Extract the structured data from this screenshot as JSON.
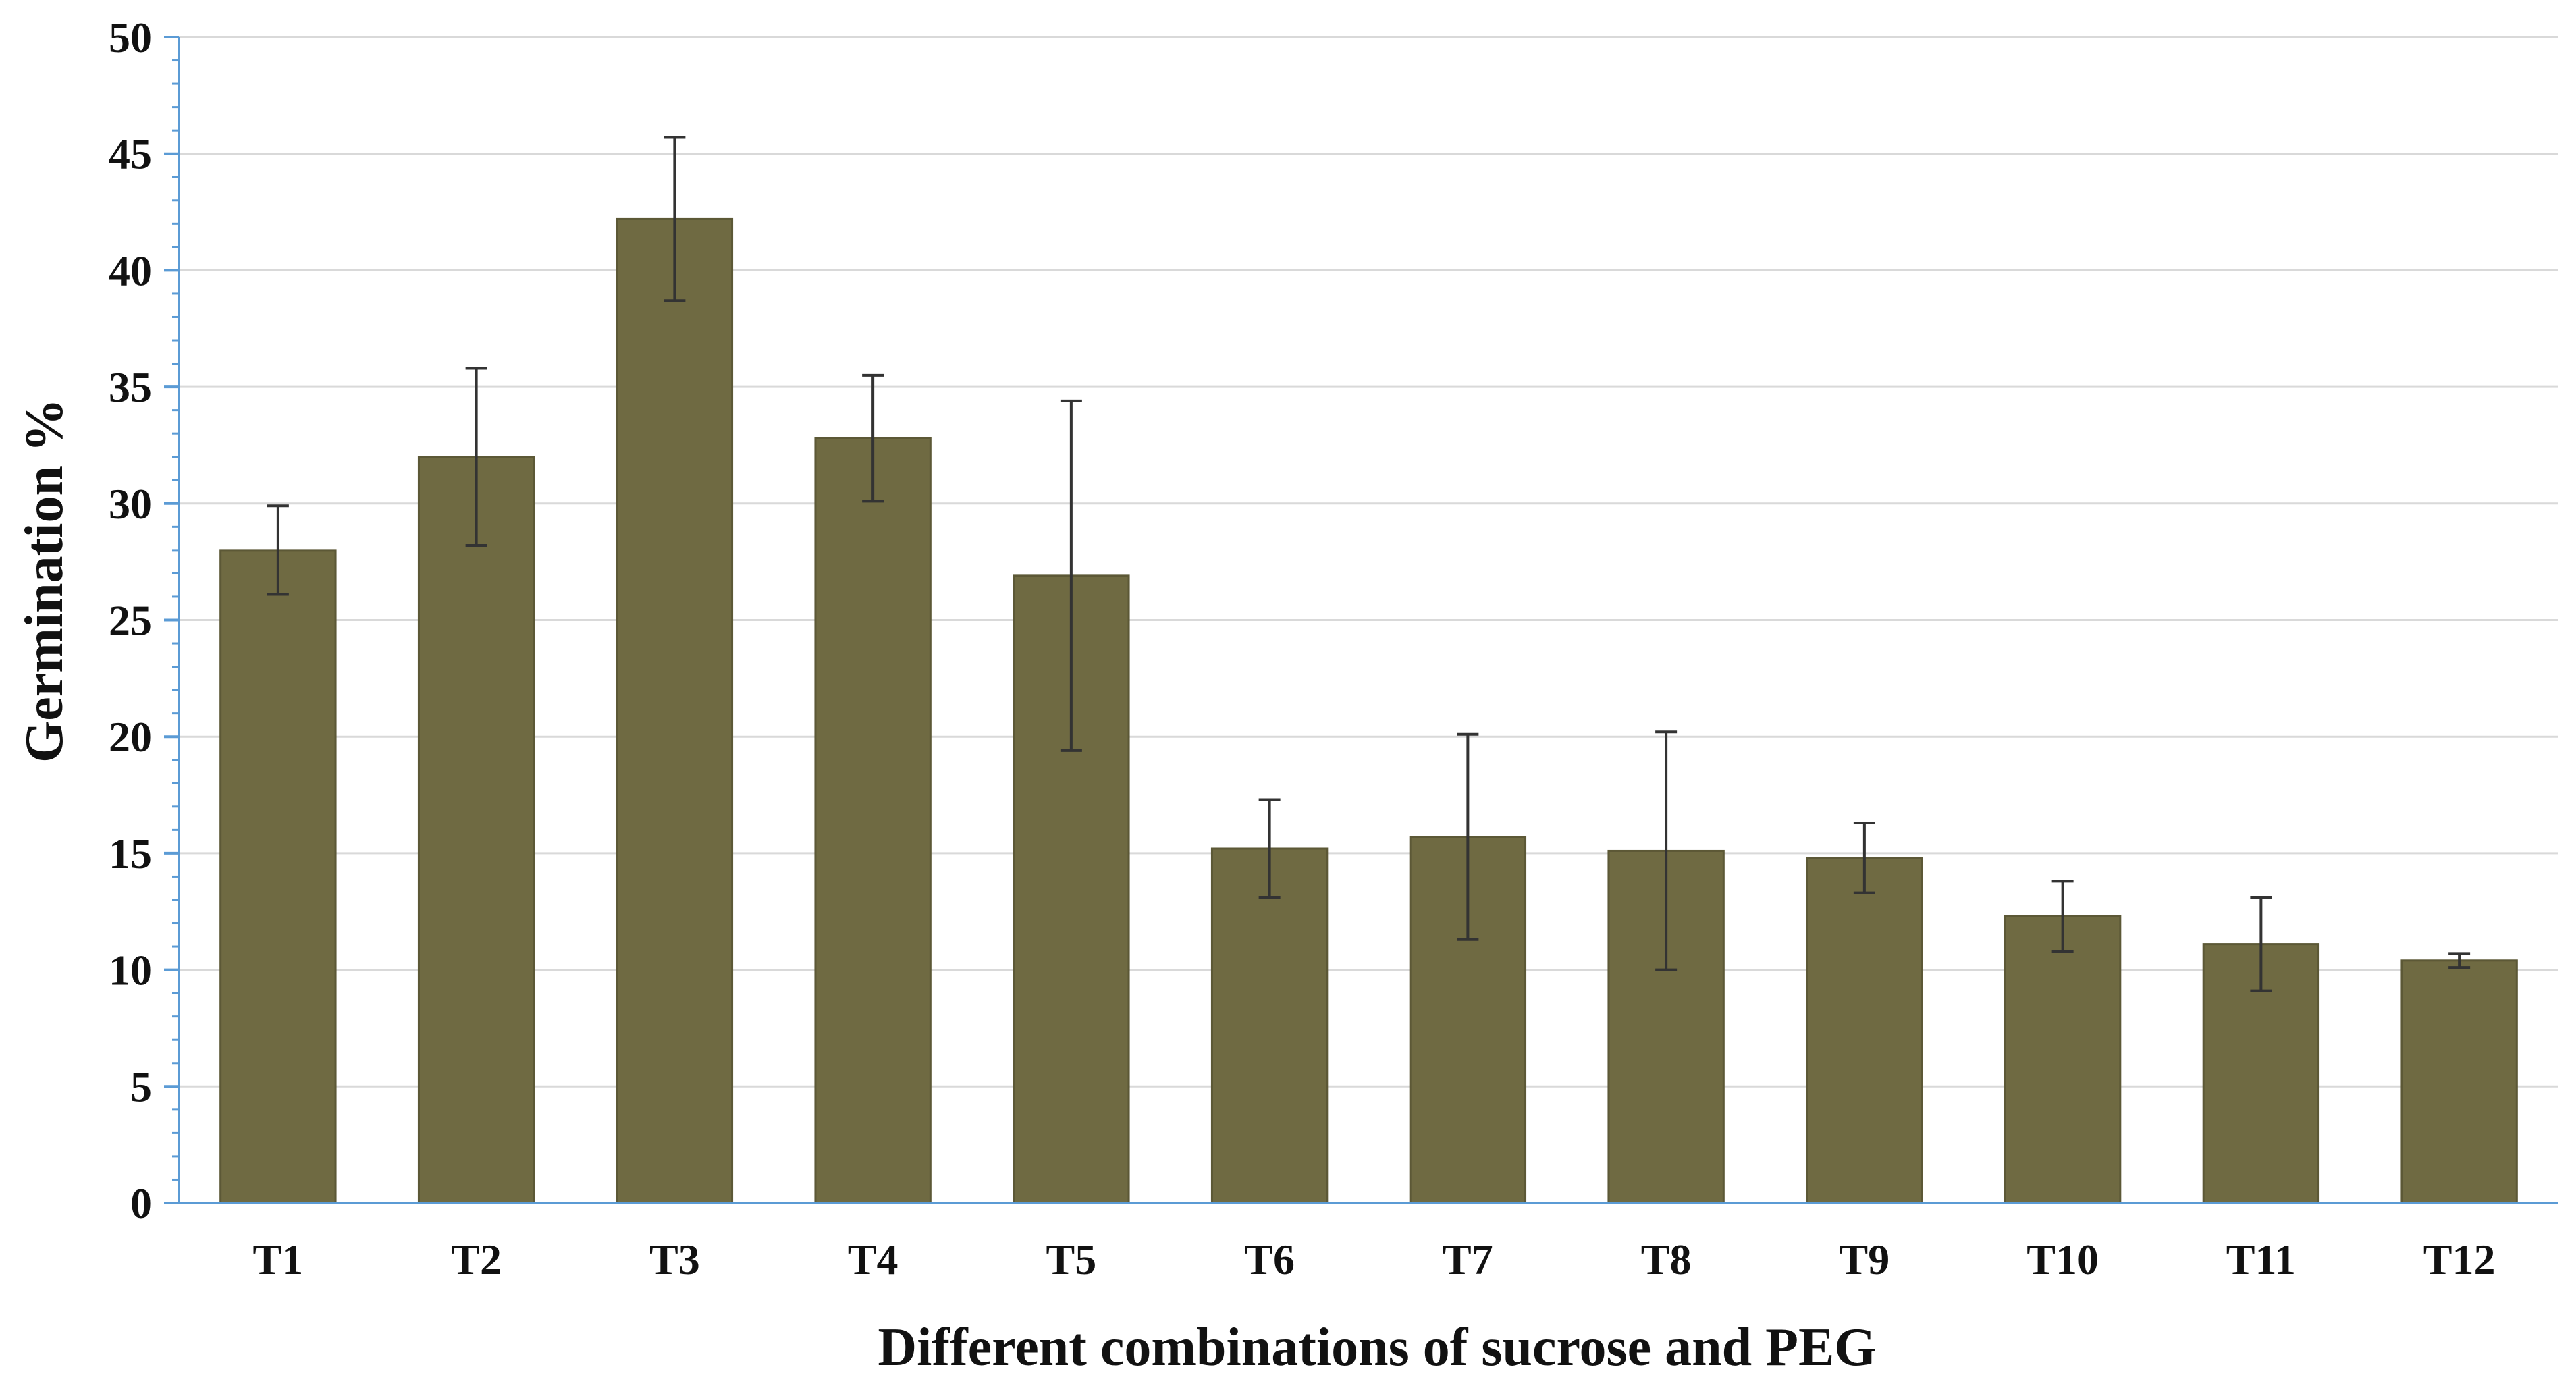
{
  "chart_data": {
    "type": "bar",
    "title": "",
    "xlabel": "Different combinations of sucrose and PEG",
    "ylabel": "Germination %",
    "categories": [
      "T1",
      "T2",
      "T3",
      "T4",
      "T5",
      "T6",
      "T7",
      "T8",
      "T9",
      "T10",
      "T11",
      "T12"
    ],
    "values": [
      28.0,
      32.0,
      42.2,
      32.8,
      26.9,
      15.2,
      15.7,
      15.1,
      14.8,
      12.3,
      11.1,
      10.4
    ],
    "errors": [
      1.9,
      3.8,
      3.5,
      2.7,
      7.5,
      2.1,
      4.4,
      5.1,
      1.5,
      1.5,
      2.0,
      0.3
    ],
    "ylim": [
      0,
      50
    ],
    "yticks": [
      0,
      5,
      10,
      15,
      20,
      25,
      30,
      35,
      40,
      45,
      50
    ],
    "grid": true,
    "legend": "none",
    "colors": {
      "bar": "#6f6a42",
      "bar_edge": "#5c5836",
      "error_bar": "#333333",
      "axis": "#5b9bd5",
      "grid": "#d9d9d9"
    }
  }
}
